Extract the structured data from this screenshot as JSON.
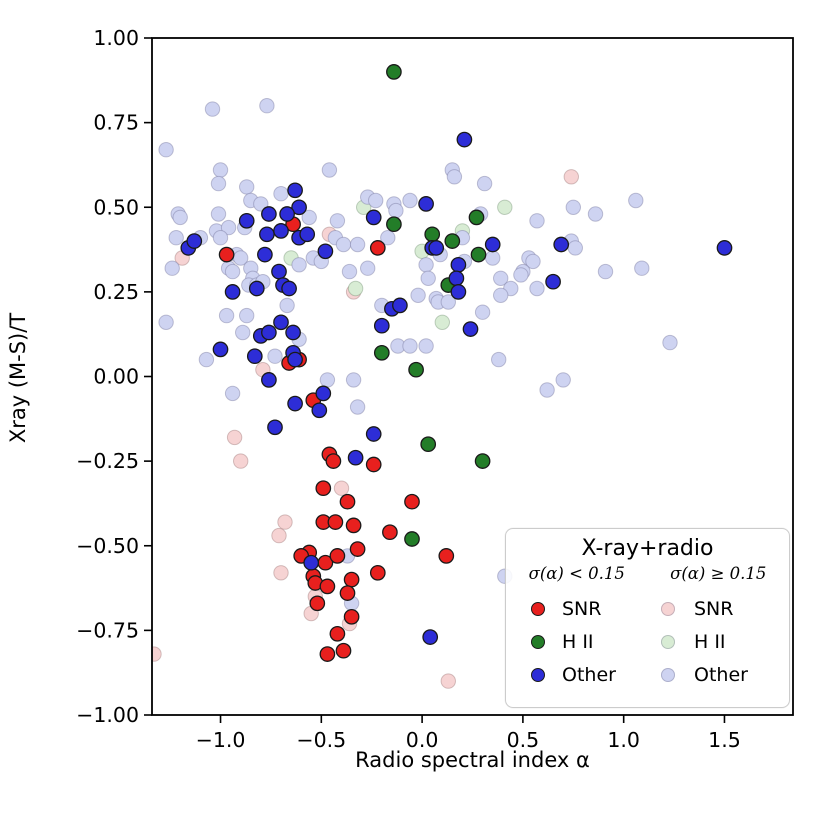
{
  "figure": {
    "xlabel": "Radio spectral index α",
    "ylabel": "Xray (M-S)/T"
  },
  "legend": {
    "title": "X-ray+radio",
    "col_headers": [
      "σ(α) < 0.15",
      "σ(α) ≥ 0.15"
    ],
    "rows": [
      {
        "left": "SNR",
        "right": "SNR"
      },
      {
        "left": "H II",
        "right": "H II"
      },
      {
        "left": "Other",
        "right": "Other"
      }
    ]
  },
  "chart_data": {
    "type": "scatter",
    "title": "",
    "xlabel": "Radio spectral index α",
    "ylabel": "Xray (M-S)/T",
    "xlim": [
      -1.34,
      1.84
    ],
    "ylim": [
      -1.0,
      1.0
    ],
    "xticks": [
      -1.0,
      -0.5,
      0.0,
      0.5,
      1.0,
      1.5
    ],
    "yticks": [
      1.0,
      0.75,
      0.5,
      0.25,
      0.0,
      -0.25,
      -0.5,
      -0.75,
      -1.0
    ],
    "grid": false,
    "legend_position": "lower right",
    "marker_radius": 7.2,
    "frame_color": "#000000",
    "series": [
      {
        "name": "SNR (σ(α) < 0.15)",
        "color": "#e8201e",
        "edge": "#1a1a1a",
        "points": [
          [
            -0.64,
            0.45
          ],
          [
            -0.97,
            0.36
          ],
          [
            -0.22,
            0.38
          ],
          [
            -0.66,
            0.04
          ],
          [
            -0.61,
            0.05
          ],
          [
            -0.54,
            -0.07
          ],
          [
            -0.46,
            -0.23
          ],
          [
            -0.44,
            -0.25
          ],
          [
            -0.24,
            -0.26
          ],
          [
            -0.49,
            -0.33
          ],
          [
            -0.37,
            -0.37
          ],
          [
            -0.05,
            -0.37
          ],
          [
            -0.49,
            -0.43
          ],
          [
            -0.43,
            -0.43
          ],
          [
            -0.34,
            -0.44
          ],
          [
            -0.16,
            -0.46
          ],
          [
            -0.56,
            -0.52
          ],
          [
            -0.6,
            -0.53
          ],
          [
            0.12,
            -0.53
          ],
          [
            -0.48,
            -0.55
          ],
          [
            -0.42,
            -0.53
          ],
          [
            -0.32,
            -0.51
          ],
          [
            -0.54,
            -0.59
          ],
          [
            -0.53,
            -0.61
          ],
          [
            -0.47,
            -0.62
          ],
          [
            -0.35,
            -0.6
          ],
          [
            -0.22,
            -0.58
          ],
          [
            -0.37,
            -0.64
          ],
          [
            -0.52,
            -0.67
          ],
          [
            -0.35,
            -0.71
          ],
          [
            -0.42,
            -0.76
          ],
          [
            -0.39,
            -0.81
          ],
          [
            -0.47,
            -0.82
          ]
        ]
      },
      {
        "name": "H II (σ(α) < 0.15)",
        "color": "#237d28",
        "edge": "#1a1a1a",
        "points": [
          [
            -0.14,
            0.9
          ],
          [
            0.27,
            0.47
          ],
          [
            -0.14,
            0.45
          ],
          [
            0.05,
            0.42
          ],
          [
            0.15,
            0.4
          ],
          [
            0.28,
            0.36
          ],
          [
            0.13,
            0.27
          ],
          [
            -0.2,
            0.07
          ],
          [
            -0.03,
            0.02
          ],
          [
            0.03,
            -0.2
          ],
          [
            0.3,
            -0.25
          ],
          [
            -0.05,
            -0.48
          ]
        ]
      },
      {
        "name": "Other (σ(α) < 0.15)",
        "color": "#2d2dd7",
        "edge": "#1a1a1a",
        "points": [
          [
            0.21,
            0.7
          ],
          [
            -0.63,
            0.55
          ],
          [
            -0.61,
            0.5
          ],
          [
            -0.76,
            0.48
          ],
          [
            -0.67,
            0.48
          ],
          [
            -0.87,
            0.46
          ],
          [
            -0.24,
            0.47
          ],
          [
            0.02,
            0.51
          ],
          [
            1.5,
            0.38
          ],
          [
            -1.16,
            0.38
          ],
          [
            -1.13,
            0.4
          ],
          [
            -0.77,
            0.42
          ],
          [
            -0.7,
            0.43
          ],
          [
            -0.61,
            0.41
          ],
          [
            -0.57,
            0.42
          ],
          [
            -0.48,
            0.37
          ],
          [
            0.05,
            0.38
          ],
          [
            0.07,
            0.38
          ],
          [
            0.35,
            0.39
          ],
          [
            0.69,
            0.39
          ],
          [
            -0.78,
            0.36
          ],
          [
            -0.71,
            0.31
          ],
          [
            -0.69,
            0.27
          ],
          [
            -0.66,
            0.26
          ],
          [
            -0.82,
            0.26
          ],
          [
            -0.94,
            0.25
          ],
          [
            0.18,
            0.33
          ],
          [
            0.17,
            0.29
          ],
          [
            0.18,
            0.25
          ],
          [
            0.65,
            0.28
          ],
          [
            -0.8,
            0.12
          ],
          [
            -0.76,
            0.13
          ],
          [
            -0.7,
            0.16
          ],
          [
            -0.64,
            0.13
          ],
          [
            -1.0,
            0.08
          ],
          [
            -0.83,
            0.06
          ],
          [
            -0.64,
            0.07
          ],
          [
            -0.63,
            0.05
          ],
          [
            -0.15,
            0.2
          ],
          [
            -0.11,
            0.21
          ],
          [
            -0.2,
            0.15
          ],
          [
            0.24,
            0.14
          ],
          [
            -0.76,
            -0.01
          ],
          [
            -0.49,
            -0.05
          ],
          [
            -0.63,
            -0.08
          ],
          [
            -0.51,
            -0.1
          ],
          [
            -0.73,
            -0.15
          ],
          [
            -0.24,
            -0.17
          ],
          [
            -0.33,
            -0.24
          ],
          [
            -0.55,
            -0.55
          ],
          [
            0.04,
            -0.77
          ]
        ]
      },
      {
        "name": "SNR (σ(α) ≥ 0.15)",
        "color": "#f6d3d3",
        "edge": "rgba(150,110,110,0.4)",
        "points": [
          [
            0.74,
            0.59
          ],
          [
            -1.19,
            0.35
          ],
          [
            -0.46,
            0.42
          ],
          [
            -0.34,
            0.25
          ],
          [
            -0.79,
            0.02
          ],
          [
            -0.93,
            -0.18
          ],
          [
            -0.9,
            -0.25
          ],
          [
            -0.4,
            -0.33
          ],
          [
            -0.68,
            -0.43
          ],
          [
            -0.71,
            -0.47
          ],
          [
            -0.7,
            -0.58
          ],
          [
            -0.53,
            -0.65
          ],
          [
            -0.55,
            -0.7
          ],
          [
            -0.36,
            -0.73
          ],
          [
            -1.33,
            -0.82
          ],
          [
            0.13,
            -0.9
          ]
        ]
      },
      {
        "name": "H II (σ(α) ≥ 0.15)",
        "color": "#d8ecd4",
        "edge": "rgba(110,140,110,0.4)",
        "points": [
          [
            -0.29,
            0.5
          ],
          [
            0.41,
            0.5
          ],
          [
            0.2,
            0.43
          ],
          [
            0.0,
            0.37
          ],
          [
            -0.65,
            0.35
          ],
          [
            -0.33,
            0.26
          ],
          [
            0.1,
            0.16
          ]
        ]
      },
      {
        "name": "Other (σ(α) ≥ 0.15)",
        "color": "#ced3f1",
        "edge": "rgba(110,110,150,0.4)",
        "points": [
          [
            -1.04,
            0.79
          ],
          [
            -0.77,
            0.8
          ],
          [
            -1.27,
            0.67
          ],
          [
            -1.0,
            0.61
          ],
          [
            -1.01,
            0.57
          ],
          [
            -0.46,
            0.61
          ],
          [
            -0.87,
            0.56
          ],
          [
            -0.85,
            0.52
          ],
          [
            -0.8,
            0.51
          ],
          [
            -0.7,
            0.54
          ],
          [
            -1.21,
            0.48
          ],
          [
            -1.2,
            0.47
          ],
          [
            -1.01,
            0.48
          ],
          [
            -0.56,
            0.47
          ],
          [
            -0.27,
            0.53
          ],
          [
            -0.42,
            0.46
          ],
          [
            0.15,
            0.61
          ],
          [
            0.16,
            0.59
          ],
          [
            0.31,
            0.57
          ],
          [
            -0.06,
            0.52
          ],
          [
            -0.14,
            0.51
          ],
          [
            -0.13,
            0.49
          ],
          [
            -0.23,
            0.52
          ],
          [
            0.29,
            0.48
          ],
          [
            0.57,
            0.46
          ],
          [
            0.75,
            0.5
          ],
          [
            0.86,
            0.48
          ],
          [
            1.06,
            0.52
          ],
          [
            -1.22,
            0.41
          ],
          [
            -1.1,
            0.41
          ],
          [
            -1.02,
            0.43
          ],
          [
            -0.96,
            0.44
          ],
          [
            -1.0,
            0.41
          ],
          [
            -1.24,
            0.32
          ],
          [
            -0.92,
            0.36
          ],
          [
            -0.88,
            0.44
          ],
          [
            -0.43,
            0.41
          ],
          [
            -0.39,
            0.39
          ],
          [
            -0.32,
            0.39
          ],
          [
            -0.17,
            0.41
          ],
          [
            -0.61,
            0.33
          ],
          [
            -0.54,
            0.35
          ],
          [
            -0.5,
            0.34
          ],
          [
            -0.96,
            0.32
          ],
          [
            -0.94,
            0.31
          ],
          [
            -0.9,
            0.35
          ],
          [
            -0.85,
            0.32
          ],
          [
            -0.84,
            0.29
          ],
          [
            -0.86,
            0.27
          ],
          [
            -0.82,
            0.27
          ],
          [
            -0.79,
            0.28
          ],
          [
            -0.36,
            0.31
          ],
          [
            -0.27,
            0.32
          ],
          [
            -0.67,
            0.21
          ],
          [
            -0.97,
            0.18
          ],
          [
            -0.87,
            0.18
          ],
          [
            -1.27,
            0.16
          ],
          [
            -0.89,
            0.13
          ],
          [
            -0.61,
            0.11
          ],
          [
            -1.07,
            0.05
          ],
          [
            -0.73,
            0.06
          ],
          [
            0.2,
            0.41
          ],
          [
            0.09,
            0.36
          ],
          [
            0.35,
            0.35
          ],
          [
            0.53,
            0.35
          ],
          [
            0.55,
            0.34
          ],
          [
            0.21,
            0.34
          ],
          [
            0.02,
            0.33
          ],
          [
            0.03,
            0.29
          ],
          [
            0.5,
            0.31
          ],
          [
            0.49,
            0.3
          ],
          [
            0.74,
            0.4
          ],
          [
            0.76,
            0.38
          ],
          [
            0.57,
            0.26
          ],
          [
            0.39,
            0.29
          ],
          [
            0.44,
            0.26
          ],
          [
            0.39,
            0.24
          ],
          [
            -0.02,
            0.24
          ],
          [
            0.07,
            0.23
          ],
          [
            0.08,
            0.22
          ],
          [
            0.13,
            0.22
          ],
          [
            -0.2,
            0.21
          ],
          [
            0.3,
            0.19
          ],
          [
            0.91,
            0.31
          ],
          [
            1.09,
            0.32
          ],
          [
            1.23,
            0.1
          ],
          [
            -0.12,
            0.09
          ],
          [
            -0.06,
            0.09
          ],
          [
            0.02,
            0.09
          ],
          [
            0.38,
            0.05
          ],
          [
            0.7,
            -0.01
          ],
          [
            0.62,
            -0.04
          ],
          [
            -0.94,
            -0.05
          ],
          [
            -0.32,
            -0.09
          ],
          [
            -0.47,
            -0.01
          ],
          [
            -0.34,
            -0.01
          ],
          [
            -0.37,
            -0.53
          ],
          [
            -0.35,
            -0.67
          ],
          [
            0.41,
            -0.59
          ]
        ]
      }
    ]
  }
}
